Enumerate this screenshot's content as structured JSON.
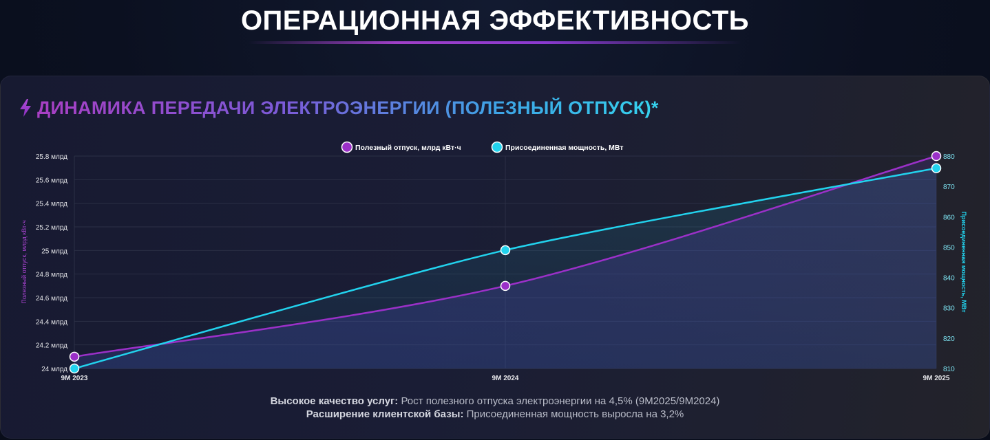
{
  "page": {
    "title": "ОПЕРАЦИОННАЯ ЭФФЕКТИВНОСТЬ"
  },
  "card": {
    "icon": "lightning-icon",
    "title": "ДИНАМИКА ПЕРЕДАЧИ ЭЛЕКТРОЭНЕРГИИ (ПОЛЕЗНЫЙ ОТПУСК)*"
  },
  "footnotes": [
    {
      "label": "Высокое качество услуг:",
      "text": " Рост полезного отпуска электроэнергии на 4,5% (9М2025/9М2024)"
    },
    {
      "label": "Расширение клиентской базы:",
      "text": " Присоединенная мощность выросла на 3,2%"
    }
  ],
  "colors": {
    "series1": "#9b30c8",
    "series2": "#22d3ee",
    "grid": "#2b2f45",
    "tick_text": "#e6e6ea"
  },
  "chart_data": {
    "type": "line",
    "categories": [
      "9M 2023",
      "9M 2024",
      "9M 2025"
    ],
    "series": [
      {
        "name": "Полезный отпуск, млрд кВт·ч",
        "axis": "left",
        "values": [
          24.1,
          24.7,
          25.8
        ]
      },
      {
        "name": "Присоединенная мощность, МВт",
        "axis": "right",
        "values": [
          810,
          849,
          876
        ]
      }
    ],
    "y_left": {
      "label": "Полезный отпуск, млрд кВт·ч",
      "ylim": [
        24,
        25.8
      ],
      "ticks": [
        {
          "value": 24,
          "label": "24 млрд"
        },
        {
          "value": 24.2,
          "label": "24.2 млрд"
        },
        {
          "value": 24.4,
          "label": "24.4 млрд"
        },
        {
          "value": 24.6,
          "label": "24.6 млрд"
        },
        {
          "value": 24.8,
          "label": "24.8 млрд"
        },
        {
          "value": 25,
          "label": "25 млрд"
        },
        {
          "value": 25.2,
          "label": "25.2 млрд"
        },
        {
          "value": 25.4,
          "label": "25.4 млрд"
        },
        {
          "value": 25.6,
          "label": "25.6 млрд"
        },
        {
          "value": 25.8,
          "label": "25.8 млрд"
        }
      ]
    },
    "y_right": {
      "label": "Присоединенная мощность, МВт",
      "ylim": [
        810,
        880
      ],
      "ticks": [
        {
          "value": 810,
          "label": "810"
        },
        {
          "value": 820,
          "label": "820"
        },
        {
          "value": 830,
          "label": "830"
        },
        {
          "value": 840,
          "label": "840"
        },
        {
          "value": 850,
          "label": "850"
        },
        {
          "value": 860,
          "label": "860"
        },
        {
          "value": 870,
          "label": "870"
        },
        {
          "value": 880,
          "label": "880"
        }
      ]
    },
    "grid": true,
    "legend_position": "top-center"
  }
}
